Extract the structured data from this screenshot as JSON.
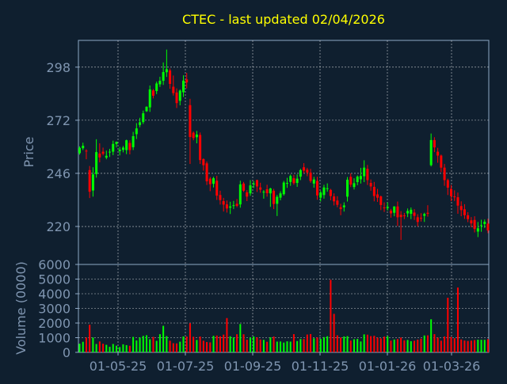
{
  "chart_data": {
    "type": "candlestick",
    "title": "CTEC - last updated 02/04/2026",
    "colors": {
      "background": "#0f1f2f",
      "text": "#ffff00",
      "axis": "#7f95b0",
      "grid": "#ffffff",
      "up": "#00ff00",
      "down": "#ff0000"
    },
    "grid": true,
    "x_ticks": [
      "01-05-25",
      "01-07-25",
      "01-09-25",
      "01-11-25",
      "01-01-26",
      "01-03-26"
    ],
    "price_panel": {
      "ylabel": "Price",
      "yticks": [
        220,
        246,
        272,
        298
      ],
      "ylim": [
        201.4,
        311.1
      ],
      "close": [
        258.5,
        259.5,
        257.0,
        237.0,
        245.5,
        256.4,
        253.8,
        255.6,
        254.6,
        256.6,
        260.4,
        261.4,
        257.6,
        258.6,
        262.2,
        257.4,
        264.2,
        268.0,
        271.0,
        275.4,
        278.6,
        287.1,
        284.0,
        290.0,
        291.3,
        295.6,
        297.0,
        289.8,
        285.3,
        280.4,
        286.5,
        291.4,
        290.5,
        263.8,
        263.3,
        265.0,
        252.5,
        250.0,
        242.1,
        240.7,
        243.6,
        235.1,
        232.9,
        230.7,
        228.8,
        229.8,
        230.4,
        230.1,
        240.6,
        237.5,
        234.6,
        240.1,
        241.0,
        239.6,
        238.0,
        237.0,
        236.3,
        238.6,
        231.0,
        234.5,
        236.2,
        241.5,
        241.3,
        244.7,
        241.2,
        243.4,
        247.6,
        247.3,
        246.4,
        242.3,
        243.0,
        235.2,
        236.6,
        239.1,
        238.7,
        234.9,
        232.3,
        230.6,
        228.5,
        230.3,
        242.9,
        240.5,
        241.2,
        244.4,
        244.7,
        248.8,
        242.7,
        239.6,
        234.9,
        234.1,
        230.5,
        229.2,
        229.6,
        226.4,
        229.8,
        224.5,
        224.6,
        225.2,
        227.6,
        228.2,
        225.2,
        222.2,
        223.9,
        226.1,
        226.2,
        262.3,
        258.7,
        254.7,
        248.8,
        242.7,
        239.0,
        234.8,
        234.4,
        230.2,
        228.0,
        225.5,
        223.6,
        221.5,
        218.8,
        219.1,
        220.6,
        222.3,
        218.0
      ],
      "open": [
        255.9,
        258.3,
        257.1,
        247.6,
        237.6,
        245.7,
        255.7,
        256.6,
        253.7,
        256.5,
        256.6,
        260.4,
        256.9,
        257.5,
        257.4,
        260.9,
        258.8,
        265.2,
        269.7,
        271.1,
        276.4,
        278.3,
        286.6,
        286.3,
        289.6,
        291.3,
        295.5,
        296.4,
        288.4,
        285.6,
        281.5,
        285.7,
        292.0,
        279.4,
        265.9,
        263.7,
        264.8,
        253.0,
        250.9,
        243.4,
        240.9,
        242.4,
        235.4,
        232.4,
        230.8,
        229.2,
        230.2,
        231.1,
        230.8,
        241.0,
        236.7,
        236.2,
        240.6,
        242.7,
        239.1,
        236.9,
        238.2,
        236.2,
        237.5,
        231.1,
        234.1,
        235.8,
        240.9,
        241.8,
        243.6,
        241.3,
        244.4,
        249.0,
        247.8,
        246.4,
        241.0,
        242.3,
        234.1,
        235.4,
        238.3,
        237.9,
        234.7,
        232.7,
        229.4,
        229.4,
        234.6,
        244.3,
        239.3,
        241.7,
        243.1,
        244.6,
        248.2,
        241.3,
        239.4,
        235.7,
        234.7,
        229.3,
        229.0,
        227.7,
        226.7,
        229.8,
        225.7,
        225.4,
        226.4,
        226.2,
        226.8,
        224.5,
        224.2,
        225.2,
        226.7,
        250.0,
        262.3,
        256.6,
        254.7,
        248.8,
        242.7,
        238.4,
        234.7,
        234.3,
        230.0,
        228.4,
        225.5,
        223.0,
        223.2,
        217.5,
        220.4,
        221.2,
        221.4
      ],
      "high": [
        259.2,
        261.0,
        257.8,
        249.6,
        249.0,
        262.7,
        260.7,
        258.6,
        257.1,
        258.0,
        262.0,
        261.6,
        258.9,
        259.4,
        262.5,
        262.2,
        266.3,
        270.6,
        273.2,
        276.7,
        278.8,
        289.0,
        287.3,
        290.9,
        293.3,
        300.3,
        306.6,
        297.3,
        293.9,
        287.6,
        287.1,
        294.0,
        295.2,
        282.5,
        266.5,
        266.8,
        266.0,
        253.3,
        251.8,
        244.2,
        244.3,
        244.8,
        237.5,
        234.0,
        232.7,
        232.1,
        232.5,
        233.4,
        242.4,
        241.8,
        237.8,
        242.7,
        242.2,
        242.9,
        241.4,
        237.8,
        240.4,
        238.9,
        238.4,
        235.4,
        237.2,
        242.3,
        243.8,
        245.4,
        245.3,
        245.5,
        248.2,
        251.0,
        248.7,
        248.2,
        244.3,
        244.3,
        237.4,
        240.4,
        241.1,
        238.4,
        236.2,
        234.8,
        231.1,
        231.8,
        244.2,
        246.0,
        243.6,
        245.0,
        248.7,
        252.4,
        250.1,
        243.0,
        241.8,
        238.4,
        235.1,
        231.8,
        231.8,
        228.6,
        229.9,
        232.2,
        227.5,
        226.6,
        228.8,
        229.3,
        228.5,
        226.0,
        226.5,
        226.7,
        230.4,
        265.5,
        263.7,
        258.5,
        255.2,
        250.6,
        243.4,
        240.3,
        237.7,
        236.6,
        232.3,
        230.9,
        227.0,
        224.6,
        225.0,
        222.2,
        223.3,
        223.4,
        223.8
      ],
      "low": [
        255.2,
        257.4,
        252.9,
        233.9,
        234.6,
        243.9,
        251.4,
        254.8,
        252.9,
        254.0,
        254.9,
        258.7,
        254.8,
        256.3,
        255.4,
        255.3,
        257.4,
        262.8,
        268.6,
        270.2,
        276.1,
        276.1,
        282.7,
        284.8,
        288.3,
        289.3,
        293.2,
        287.4,
        284.1,
        278.0,
        279.3,
        283.4,
        287.6,
        250.6,
        262.2,
        260.7,
        250.6,
        247.3,
        240.3,
        237.3,
        239.1,
        233.0,
        230.7,
        227.3,
        226.8,
        226.1,
        228.5,
        229.4,
        229.2,
        236.9,
        232.4,
        235.0,
        238.8,
        236.9,
        236.5,
        233.6,
        234.6,
        229.6,
        228.5,
        225.1,
        232.8,
        235.1,
        238.9,
        239.9,
        240.4,
        239.4,
        242.7,
        246.0,
        244.6,
        241.4,
        239.0,
        233.1,
        232.2,
        233.6,
        237.0,
        232.8,
        230.3,
        229.4,
        225.5,
        227.3,
        232.2,
        239.3,
        238.1,
        240.2,
        241.0,
        241.7,
        240.3,
        237.5,
        232.3,
        232.0,
        228.0,
        227.1,
        227.8,
        224.3,
        225.0,
        220.2,
        213.4,
        223.6,
        224.6,
        223.6,
        223.2,
        220.0,
        222.4,
        222.2,
        224.8,
        249.4,
        256.4,
        251.2,
        246.6,
        239.9,
        235.4,
        232.4,
        232.5,
        226.2,
        225.0,
        223.7,
        222.1,
        219.6,
        217.1,
        214.8,
        217.4,
        219.3,
        216.7
      ]
    },
    "volume_panel": {
      "ylabel": "Volume (0000)",
      "yticks": [
        0,
        1000,
        2000,
        3000,
        4000,
        5000,
        6000
      ],
      "ylim": [
        0,
        6000
      ],
      "values": [
        588,
        719,
        1011,
        1886,
        1009,
        566,
        743,
        586,
        511,
        380,
        569,
        451,
        359,
        546,
        491,
        447,
        1051,
        815,
        1012,
        1121,
        1164,
        896,
        1053,
        787,
        1238,
        1810,
        1105,
        792,
        623,
        608,
        724,
        1084,
        1082,
        1989,
        1062,
        845,
        1080,
        793,
        702,
        678,
        1124,
        1145,
        1093,
        1209,
        2339,
        1093,
        1019,
        1234,
        1932,
        1231,
        860,
        1006,
        1081,
        1024,
        875,
        852,
        718,
        1025,
        1078,
        732,
        739,
        667,
        750,
        732,
        1241,
        770,
        910,
        909,
        1215,
        1247,
        959,
        1022,
        913,
        1038,
        1097,
        4949,
        2626,
        1164,
        1011,
        1084,
        1104,
        805,
        893,
        915,
        742,
        1226,
        1205,
        1106,
        1133,
        1006,
        954,
        1075,
        1103,
        802,
        875,
        907,
        1007,
        822,
        845,
        759,
        788,
        868,
        933,
        1152,
        1158,
        2255,
        1241,
        1003,
        792,
        1084,
        3725,
        1052,
        962,
        4422,
        880,
        806,
        776,
        799,
        834,
        862,
        857,
        855,
        900
      ]
    }
  }
}
